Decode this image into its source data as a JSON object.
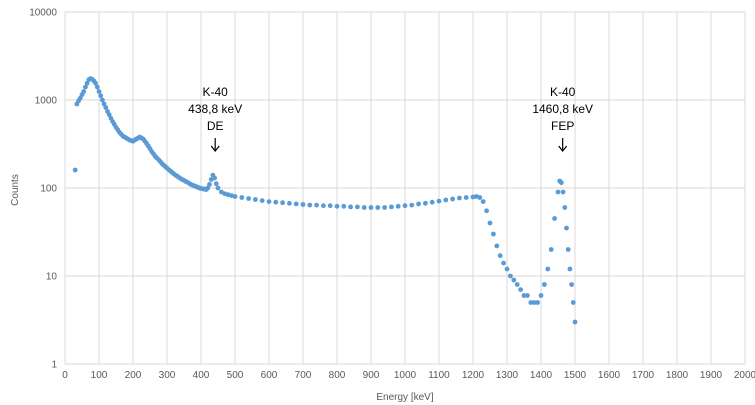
{
  "chart_data": {
    "type": "scatter",
    "xlabel": "Energy [keV]",
    "ylabel": "Counts",
    "xlim": [
      0,
      2000
    ],
    "ylim": [
      1,
      10000
    ],
    "y_scale": "log",
    "grid": true,
    "x_ticks": [
      "0",
      "100",
      "200",
      "300",
      "400",
      "500",
      "600",
      "700",
      "800",
      "900",
      "1000",
      "1100",
      "1200",
      "1300",
      "1400",
      "1500",
      "1600",
      "1700",
      "1800",
      "1900",
      "2000"
    ],
    "y_ticks": [
      "1",
      "10",
      "100",
      "1000",
      "10000"
    ],
    "marker_color": "#5b9bd5",
    "series": [
      {
        "points": [
          [
            30,
            160
          ],
          [
            35,
            900
          ],
          [
            40,
            980
          ],
          [
            45,
            1050
          ],
          [
            50,
            1150
          ],
          [
            55,
            1250
          ],
          [
            60,
            1400
          ],
          [
            65,
            1550
          ],
          [
            70,
            1700
          ],
          [
            75,
            1750
          ],
          [
            80,
            1720
          ],
          [
            85,
            1650
          ],
          [
            90,
            1550
          ],
          [
            95,
            1400
          ],
          [
            100,
            1250
          ],
          [
            105,
            1120
          ],
          [
            110,
            1000
          ],
          [
            115,
            900
          ],
          [
            120,
            820
          ],
          [
            125,
            740
          ],
          [
            130,
            680
          ],
          [
            135,
            620
          ],
          [
            140,
            570
          ],
          [
            145,
            530
          ],
          [
            150,
            490
          ],
          [
            155,
            460
          ],
          [
            160,
            430
          ],
          [
            165,
            410
          ],
          [
            170,
            390
          ],
          [
            175,
            380
          ],
          [
            180,
            370
          ],
          [
            185,
            360
          ],
          [
            190,
            350
          ],
          [
            195,
            345
          ],
          [
            200,
            340
          ],
          [
            205,
            350
          ],
          [
            210,
            360
          ],
          [
            215,
            370
          ],
          [
            220,
            380
          ],
          [
            225,
            370
          ],
          [
            230,
            360
          ],
          [
            235,
            340
          ],
          [
            240,
            320
          ],
          [
            245,
            300
          ],
          [
            250,
            280
          ],
          [
            255,
            260
          ],
          [
            260,
            245
          ],
          [
            265,
            230
          ],
          [
            270,
            220
          ],
          [
            275,
            210
          ],
          [
            280,
            200
          ],
          [
            285,
            190
          ],
          [
            290,
            182
          ],
          [
            295,
            175
          ],
          [
            300,
            168
          ],
          [
            305,
            162
          ],
          [
            310,
            156
          ],
          [
            315,
            150
          ],
          [
            320,
            145
          ],
          [
            325,
            140
          ],
          [
            330,
            136
          ],
          [
            335,
            132
          ],
          [
            340,
            128
          ],
          [
            345,
            125
          ],
          [
            350,
            122
          ],
          [
            355,
            119
          ],
          [
            360,
            116
          ],
          [
            365,
            113
          ],
          [
            370,
            110
          ],
          [
            375,
            108
          ],
          [
            380,
            106
          ],
          [
            385,
            104
          ],
          [
            390,
            102
          ],
          [
            395,
            100
          ],
          [
            400,
            99
          ],
          [
            405,
            98
          ],
          [
            410,
            97
          ],
          [
            415,
            96
          ],
          [
            420,
            100
          ],
          [
            425,
            110
          ],
          [
            430,
            125
          ],
          [
            435,
            140
          ],
          [
            440,
            130
          ],
          [
            445,
            112
          ],
          [
            450,
            100
          ],
          [
            460,
            90
          ],
          [
            470,
            86
          ],
          [
            480,
            84
          ],
          [
            490,
            82
          ],
          [
            500,
            80
          ],
          [
            520,
            78
          ],
          [
            540,
            76
          ],
          [
            560,
            74
          ],
          [
            580,
            72
          ],
          [
            600,
            70
          ],
          [
            620,
            69
          ],
          [
            640,
            68
          ],
          [
            660,
            67
          ],
          [
            680,
            66
          ],
          [
            700,
            65
          ],
          [
            720,
            64
          ],
          [
            740,
            64
          ],
          [
            760,
            63
          ],
          [
            780,
            63
          ],
          [
            800,
            62
          ],
          [
            820,
            62
          ],
          [
            840,
            61
          ],
          [
            860,
            61
          ],
          [
            880,
            60
          ],
          [
            900,
            60
          ],
          [
            920,
            60
          ],
          [
            940,
            60
          ],
          [
            960,
            61
          ],
          [
            980,
            62
          ],
          [
            1000,
            63
          ],
          [
            1020,
            64
          ],
          [
            1040,
            66
          ],
          [
            1060,
            67
          ],
          [
            1080,
            69
          ],
          [
            1100,
            71
          ],
          [
            1120,
            73
          ],
          [
            1140,
            75
          ],
          [
            1160,
            77
          ],
          [
            1180,
            78
          ],
          [
            1200,
            79
          ],
          [
            1210,
            80
          ],
          [
            1220,
            78
          ],
          [
            1230,
            70
          ],
          [
            1240,
            55
          ],
          [
            1250,
            40
          ],
          [
            1260,
            30
          ],
          [
            1270,
            22
          ],
          [
            1280,
            17
          ],
          [
            1290,
            14
          ],
          [
            1300,
            12
          ],
          [
            1310,
            10
          ],
          [
            1320,
            9
          ],
          [
            1330,
            8
          ],
          [
            1340,
            7
          ],
          [
            1350,
            6
          ],
          [
            1360,
            6
          ],
          [
            1370,
            5
          ],
          [
            1380,
            5
          ],
          [
            1390,
            5
          ],
          [
            1400,
            6
          ],
          [
            1410,
            8
          ],
          [
            1420,
            12
          ],
          [
            1430,
            20
          ],
          [
            1440,
            45
          ],
          [
            1450,
            90
          ],
          [
            1455,
            120
          ],
          [
            1460,
            115
          ],
          [
            1465,
            90
          ],
          [
            1470,
            60
          ],
          [
            1475,
            35
          ],
          [
            1480,
            20
          ],
          [
            1485,
            12
          ],
          [
            1490,
            8
          ],
          [
            1495,
            5
          ],
          [
            1500,
            3
          ]
        ]
      }
    ],
    "annotations": [
      {
        "lines": [
          "K-40",
          "438,8 keV",
          "DE"
        ],
        "x": 438.8
      },
      {
        "lines": [
          "K-40",
          "1460,8 keV",
          "FEP"
        ],
        "x": 1460.8
      }
    ]
  }
}
